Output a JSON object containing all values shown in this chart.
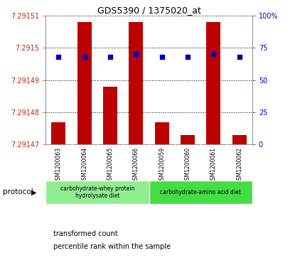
{
  "title": "GDS5390 / 1375020_at",
  "samples": [
    "GSM1200063",
    "GSM1200064",
    "GSM1200065",
    "GSM1200066",
    "GSM1200059",
    "GSM1200060",
    "GSM1200061",
    "GSM1200062"
  ],
  "transformed_counts": [
    7.291477,
    7.291508,
    7.291488,
    7.291508,
    7.291477,
    7.291473,
    7.291508,
    7.291473
  ],
  "percentile_ranks": [
    68,
    68,
    68,
    70,
    68,
    68,
    70,
    68
  ],
  "ylim_left": [
    7.29147,
    7.29151
  ],
  "ylim_right": [
    0,
    100
  ],
  "yticks_left": [
    7.29147,
    7.29148,
    7.29149,
    7.2915,
    7.29151
  ],
  "ytick_left_labels": [
    "7.29147",
    "7.29148",
    "7.29149",
    "7.2915",
    "7.29151"
  ],
  "yticks_right": [
    0,
    25,
    50,
    75,
    100
  ],
  "ytick_right_labels": [
    "0",
    "25",
    "50",
    "75",
    "100%"
  ],
  "bar_color": "#bb0000",
  "dot_color": "#0000bb",
  "group1_label": "carbohydrate-whey protein\nhydrolysate diet",
  "group2_label": "carbohydrate-amino acid diet",
  "group1_color": "#90ee90",
  "group2_color": "#44dd44",
  "group1_indices": [
    0,
    3
  ],
  "group2_indices": [
    4,
    7
  ],
  "protocol_label": "protocol",
  "legend_bar_label": "transformed count",
  "legend_dot_label": "percentile rank within the sample",
  "sample_bg_color": "#c8c8c8",
  "plot_bg_color": "#ffffff",
  "left_tick_color": "#cc2200",
  "right_tick_color": "#0000cc"
}
